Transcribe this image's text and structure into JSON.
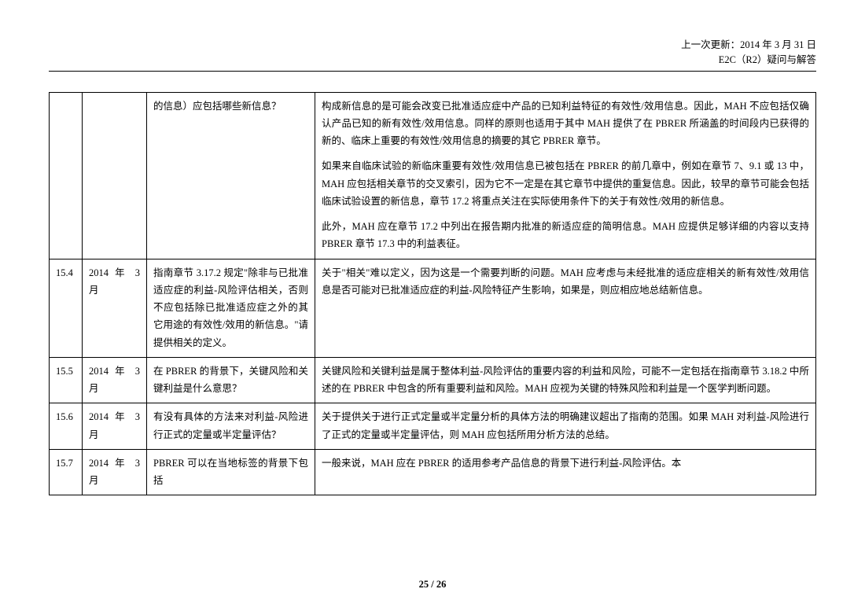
{
  "header": {
    "line1": "上一次更新：2014 年 3 月 31 日",
    "line2": "E2C（R2）疑问与解答"
  },
  "rows": [
    {
      "id": "",
      "date": "",
      "question_parts": [
        "的信息）应包括哪些新信息？"
      ],
      "answer_parts": [
        "构成新信息的是可能会改变已批准适应症中产品的已知利益特征的有效性/效用信息。因此，MAH 不应包括仅确认产品已知的新有效性/效用信息。同样的原则也适用于其中 MAH 提供了在 PBRER 所涵盖的时间段内已获得的新的、临床上重要的有效性/效用信息的摘要的其它 PBRER 章节。",
        "如果来自临床试验的新临床重要有效性/效用信息已被包括在 PBRER 的前几章中，例如在章节 7、9.1 或 13 中，MAH 应包括相关章节的交叉索引，因为它不一定是在其它章节中提供的重复信息。因此，较早的章节可能会包括临床试验设置的新信息，章节 17.2 将重点关注在实际使用条件下的关于有效性/效用的新信息。",
        "此外，MAH 应在章节 17.2 中列出在报告期内批准的新适应症的简明信息。MAH 应提供足够详细的内容以支持 PBRER 章节 17.3 中的利益表征。"
      ]
    },
    {
      "id": "15.4",
      "date": "2014 年 3 月",
      "question_parts": [
        "指南章节 3.17.2 规定\"除非与已批准适应症的利益-风险评估相关，否则不应包括除已批准适应症之外的其它用途的有效性/效用的新信息。\"请提供相关的定义。"
      ],
      "answer_parts": [
        "关于\"相关\"难以定义，因为这是一个需要判断的问题。MAH 应考虑与未经批准的适应症相关的新有效性/效用信息是否可能对已批准适应症的利益-风险特征产生影响，如果是，则应相应地总结新信息。"
      ]
    },
    {
      "id": "15.5",
      "date": "2014 年 3 月",
      "question_parts": [
        "在 PBRER 的背景下，关键风险和关键利益是什么意思？"
      ],
      "answer_parts": [
        "关键风险和关键利益是属于整体利益-风险评估的重要内容的利益和风险，可能不一定包括在指南章节 3.18.2 中所述的在 PBRER 中包含的所有重要利益和风险。MAH 应视为关键的特殊风险和利益是一个医学判断问题。"
      ]
    },
    {
      "id": "15.6",
      "date": "2014 年 3 月",
      "question_parts": [
        "有没有具体的方法来对利益-风险进行正式的定量或半定量评估？"
      ],
      "answer_parts": [
        "关于提供关于进行正式定量或半定量分析的具体方法的明确建议超出了指南的范围。如果 MAH 对利益-风险进行了正式的定量或半定量评估，则 MAH 应包括所用分析方法的总结。"
      ]
    },
    {
      "id": "15.7",
      "date": "2014 年 3 月",
      "question_parts": [
        "PBRER 可以在当地标签的背景下包括"
      ],
      "answer_parts": [
        "一般来说，MAH 应在 PBRER 的适用参考产品信息的背景下进行利益-风险评估。本"
      ]
    }
  ],
  "footer": {
    "page": "25 / 26"
  }
}
